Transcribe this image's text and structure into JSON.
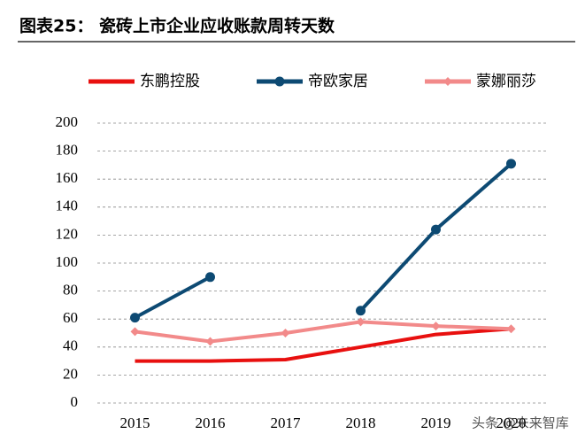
{
  "chart_data": {
    "type": "line",
    "title": "图表25： 瓷砖上市企业应收账款周转天数",
    "categories": [
      "2015",
      "2016",
      "2017",
      "2018",
      "2019",
      "2020"
    ],
    "series": [
      {
        "name": "东鹏控股",
        "color": "#e8100f",
        "marker": "none",
        "values": [
          30,
          30,
          31,
          40,
          49,
          53
        ]
      },
      {
        "name": "帝欧家居",
        "color": "#0d4a73",
        "marker": "circle",
        "values": [
          61,
          90,
          null,
          66,
          124,
          171
        ]
      },
      {
        "name": "蒙娜丽莎",
        "color": "#f28a8a",
        "marker": "diamond",
        "values": [
          51,
          44,
          50,
          58,
          55,
          53
        ]
      }
    ],
    "ylim": [
      0,
      200
    ],
    "yticks": [
      0,
      20,
      40,
      60,
      80,
      100,
      120,
      140,
      160,
      180,
      200
    ],
    "grid": true,
    "legend": "top",
    "watermark": "头条 @未来智库"
  }
}
